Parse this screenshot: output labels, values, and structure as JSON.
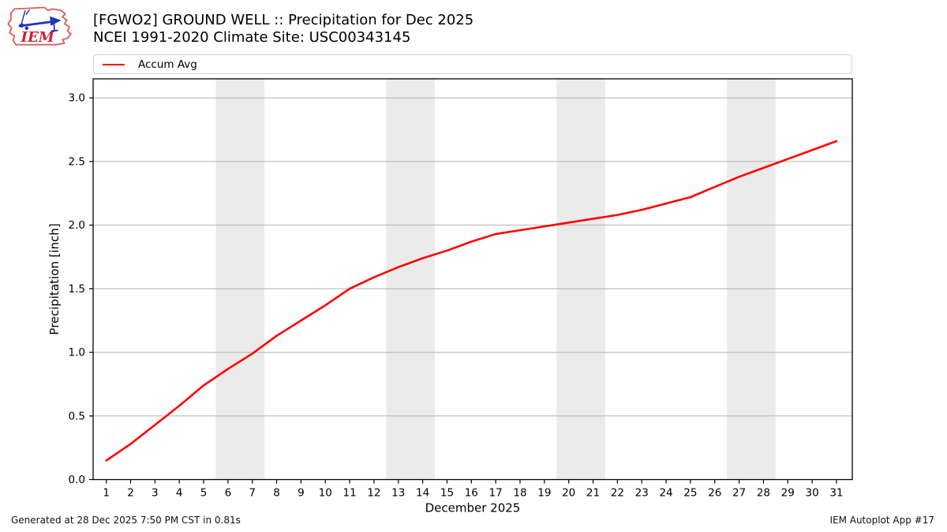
{
  "header": {
    "title_line1": "[FGWO2] GROUND WELL :: Precipitation for Dec 2025",
    "title_line2": "NCEI 1991-2020 Climate Site: USC00343145",
    "logo_text": "IEM"
  },
  "legend": {
    "items": [
      {
        "label": "Accum Avg",
        "color": "#ff0000"
      }
    ]
  },
  "chart_data": {
    "type": "line",
    "title": "[FGWO2] GROUND WELL :: Precipitation for Dec 2025 — NCEI 1991-2020 Climate Site: USC00343145",
    "xlabel": "December 2025",
    "ylabel": "Precipitation [inch]",
    "x": [
      1,
      2,
      3,
      4,
      5,
      6,
      7,
      8,
      9,
      10,
      11,
      12,
      13,
      14,
      15,
      16,
      17,
      18,
      19,
      20,
      21,
      22,
      23,
      24,
      25,
      26,
      27,
      28,
      29,
      30,
      31
    ],
    "series": [
      {
        "name": "Accum Avg",
        "color": "#ff0000",
        "values": [
          0.15,
          0.28,
          0.43,
          0.58,
          0.74,
          0.87,
          0.99,
          1.13,
          1.25,
          1.37,
          1.5,
          1.59,
          1.67,
          1.74,
          1.8,
          1.87,
          1.93,
          1.96,
          1.99,
          2.02,
          2.05,
          2.08,
          2.12,
          2.17,
          2.22,
          2.3,
          2.38,
          2.45,
          2.52,
          2.59,
          2.66
        ]
      }
    ],
    "xlim": [
      0.46,
      31.65
    ],
    "ylim": [
      0,
      3.15
    ],
    "yticks": [
      0.0,
      0.5,
      1.0,
      1.5,
      2.0,
      2.5,
      3.0
    ],
    "ytick_labels": [
      "0.0",
      "0.5",
      "1.0",
      "1.5",
      "2.0",
      "2.5",
      "3.0"
    ],
    "grid": "horizontal",
    "legend_position": "top",
    "weekend_bands": [
      [
        5.5,
        7.5
      ],
      [
        12.5,
        14.5
      ],
      [
        19.5,
        21.5
      ],
      [
        26.5,
        28.5
      ]
    ],
    "band_color": "#ebebeb",
    "gridline_color": "#b2b2b2",
    "axis_color": "#000000"
  },
  "footer": {
    "left": "Generated at 28 Dec 2025 7:50 PM CST in 0.81s",
    "right": "IEM Autoplot App #17"
  }
}
